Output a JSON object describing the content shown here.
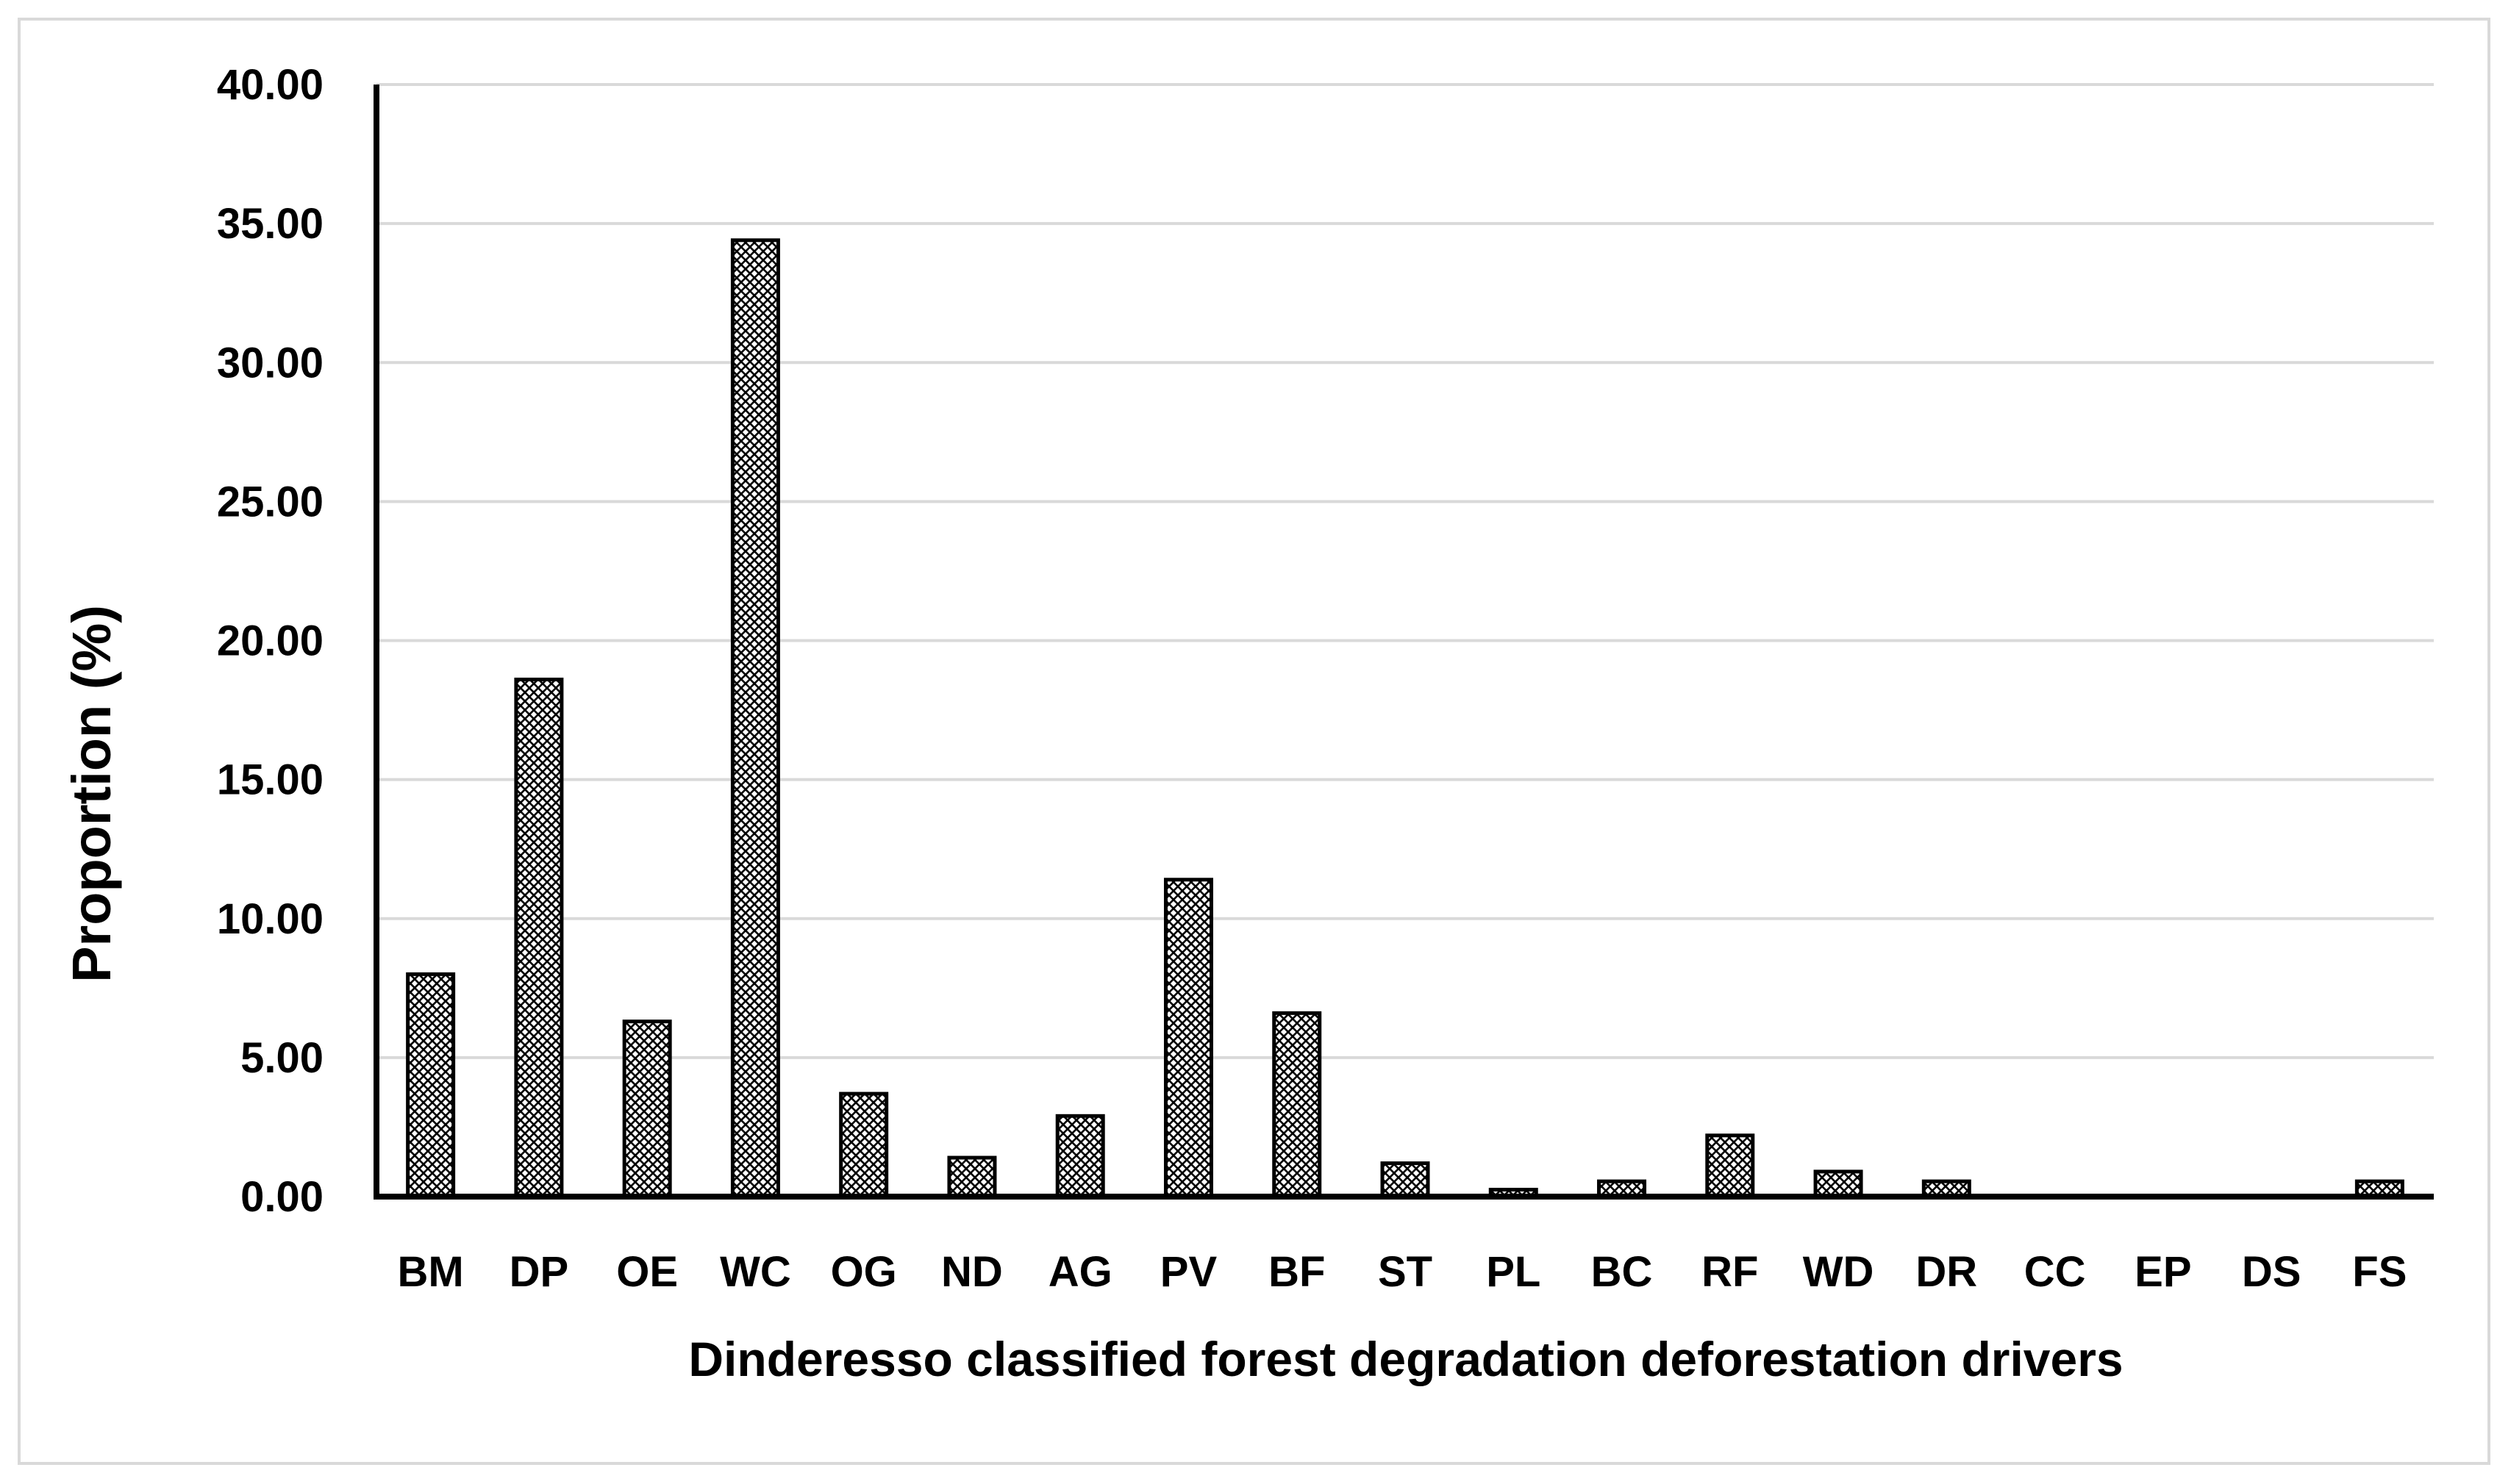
{
  "chart_data": {
    "type": "bar",
    "title": "",
    "xlabel": "Dinderesso classified forest degradation deforestation drivers",
    "ylabel": "Proportion (%)",
    "ylim": [
      0,
      40
    ],
    "yticks": [
      "0.00",
      "5.00",
      "10.00",
      "15.00",
      "20.00",
      "25.00",
      "30.00",
      "35.00",
      "40.00"
    ],
    "grid": "horizontal",
    "categories": [
      "BM",
      "DP",
      "OE",
      "WC",
      "OG",
      "ND",
      "AG",
      "PV",
      "BF",
      "ST",
      "PL",
      "BC",
      "RF",
      "WD",
      "DR",
      "CC",
      "EP",
      "DS",
      "FS"
    ],
    "values": [
      8.0,
      18.6,
      6.3,
      34.4,
      3.7,
      1.4,
      2.9,
      11.4,
      6.6,
      1.2,
      0.25,
      0.55,
      2.2,
      0.9,
      0.55,
      0,
      0,
      0,
      0.55
    ],
    "colors": {
      "bar_fill": "#ffffff",
      "bar_pattern": "#000000",
      "gridline": "#d9d9d9",
      "axis": "#000000",
      "frame": "#d9d9d9"
    }
  }
}
